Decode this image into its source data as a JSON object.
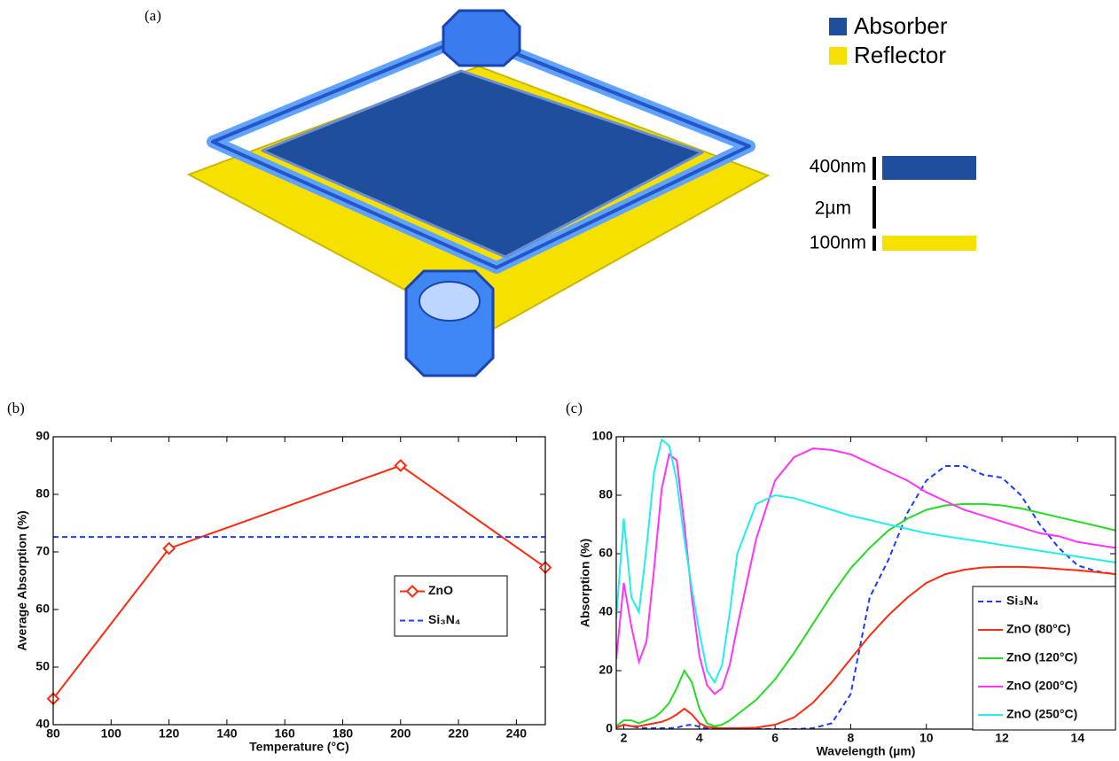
{
  "panel_a": {
    "label": "(a)",
    "legend": [
      {
        "name": "Absorber",
        "color": "#1f4e9c"
      },
      {
        "name": "Reflector",
        "color": "#f5e000"
      }
    ],
    "layers": [
      "400nm",
      "2µm",
      "100nm"
    ]
  },
  "chart_data": [
    {
      "type": "line",
      "panel_label": "(b)",
      "x_label": "Temperature (°C)",
      "y_label": "Average Absorption (%)",
      "x": [
        80,
        120,
        200,
        250
      ],
      "series": [
        {
          "name": "ZnO",
          "color": "#ff2a10",
          "values": [
            44.5,
            70.6,
            85,
            67.3
          ],
          "marker": "diamond",
          "linestyle": "solid"
        },
        {
          "name": "Si₃N₄",
          "color": "#1a3cff",
          "values": [
            72.6,
            72.6,
            72.6,
            72.6
          ],
          "linestyle": "dashed"
        }
      ],
      "xlim": [
        80,
        250
      ],
      "xticks": [
        80,
        100,
        120,
        140,
        160,
        180,
        200,
        220,
        240
      ],
      "ylim": [
        40,
        90
      ],
      "yticks": [
        40,
        50,
        60,
        70,
        80,
        90
      ],
      "legend": "lower right"
    },
    {
      "type": "line",
      "panel_label": "(c)",
      "x_label": "Wavelength (µm)",
      "y_label": "Absorption (%)",
      "x": [
        1.8,
        2.0,
        2.2,
        2.4,
        2.6,
        2.8,
        3.0,
        3.2,
        3.4,
        3.6,
        3.8,
        4.0,
        4.2,
        4.4,
        4.6,
        4.8,
        5.0,
        5.5,
        6,
        6.5,
        7,
        7.5,
        8,
        8.5,
        9,
        9.5,
        10,
        10.5,
        11,
        11.5,
        12,
        12.5,
        13,
        13.5,
        14,
        14.5,
        15
      ],
      "series": [
        {
          "name": "Si₃N₄",
          "color": "#1a3cff",
          "linestyle": "dashed",
          "values": [
            0.5,
            1.5,
            1,
            0.5,
            0.3,
            0.3,
            0.3,
            0.3,
            0.5,
            1.2,
            1.5,
            0.8,
            0.3,
            0.1,
            0,
            0,
            0,
            0,
            0,
            0,
            0.3,
            2,
            12,
            45,
            58,
            74,
            85,
            90,
            90,
            87,
            86,
            80,
            70,
            62,
            56,
            54,
            53
          ]
        },
        {
          "name": "ZnO (80°C)",
          "color": "#ff2a10",
          "linestyle": "solid",
          "values": [
            0.5,
            1.5,
            1,
            1,
            1.5,
            2,
            2.5,
            3.5,
            5,
            7,
            5,
            2,
            0.8,
            0.5,
            0.3,
            0.3,
            0.3,
            0.5,
            1.5,
            4,
            9,
            16,
            24,
            32,
            39,
            45,
            50,
            53,
            54.5,
            55.3,
            55.5,
            55.5,
            55.2,
            54.8,
            54.3,
            53.7,
            53
          ]
        },
        {
          "name": "ZnO (120°C)",
          "color": "#22dd22",
          "linestyle": "solid",
          "values": [
            1,
            3,
            3,
            2,
            3,
            4,
            6,
            9,
            14,
            20,
            16,
            7,
            2,
            1,
            1.5,
            3,
            5,
            10,
            17,
            26,
            36,
            46,
            55,
            62,
            68,
            72,
            75,
            76.5,
            77,
            77,
            76.5,
            75.5,
            74,
            72.5,
            71,
            69.5,
            68
          ]
        },
        {
          "name": "ZnO (200°C)",
          "color": "#ff33ff",
          "linestyle": "solid",
          "values": [
            24,
            50,
            35,
            23,
            30,
            55,
            82,
            94,
            92,
            70,
            45,
            25,
            15,
            12,
            14,
            22,
            35,
            65,
            85,
            93,
            96,
            95.5,
            94,
            91,
            88,
            85,
            81,
            78,
            75,
            73,
            71,
            69,
            67,
            66,
            64,
            63,
            62
          ]
        },
        {
          "name": "ZnO (250°C)",
          "color": "#22eeee",
          "linestyle": "solid",
          "values": [
            38,
            72,
            45,
            40,
            62,
            88,
            99,
            97,
            85,
            65,
            48,
            33,
            20,
            16,
            22,
            40,
            60,
            77,
            80,
            79,
            77,
            75,
            73,
            71.5,
            70,
            68.5,
            67,
            66,
            65,
            64,
            63,
            62,
            61,
            60,
            59,
            58,
            57
          ]
        }
      ],
      "xlim": [
        1.8,
        15
      ],
      "xticks": [
        2,
        4,
        6,
        8,
        10,
        12,
        14
      ],
      "ylim": [
        0,
        100
      ],
      "yticks": [
        0,
        20,
        40,
        60,
        80,
        100
      ],
      "legend": "lower right"
    }
  ]
}
